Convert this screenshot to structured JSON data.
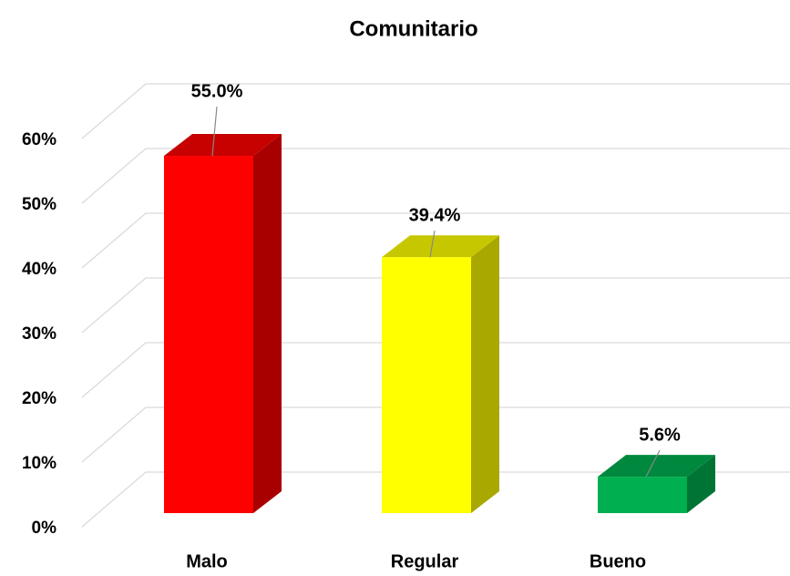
{
  "chart_data": {
    "type": "bar3d",
    "title": "Comunitario",
    "categories": [
      "Malo",
      "Regular",
      "Bueno"
    ],
    "values": [
      55.0,
      39.4,
      5.6
    ],
    "value_labels": [
      "55.0%",
      "39.4%",
      "5.6%"
    ],
    "colors": [
      "#ff0000",
      "#ffff00",
      "#00b050"
    ],
    "ylim": [
      0,
      60
    ],
    "yticks": [
      {
        "value": 0,
        "label": "0%"
      },
      {
        "value": 10,
        "label": "10%"
      },
      {
        "value": 20,
        "label": "20%"
      },
      {
        "value": 30,
        "label": "30%"
      },
      {
        "value": 40,
        "label": "40%"
      },
      {
        "value": 50,
        "label": "50%"
      },
      {
        "value": 60,
        "label": "60%"
      }
    ],
    "grid": true
  }
}
